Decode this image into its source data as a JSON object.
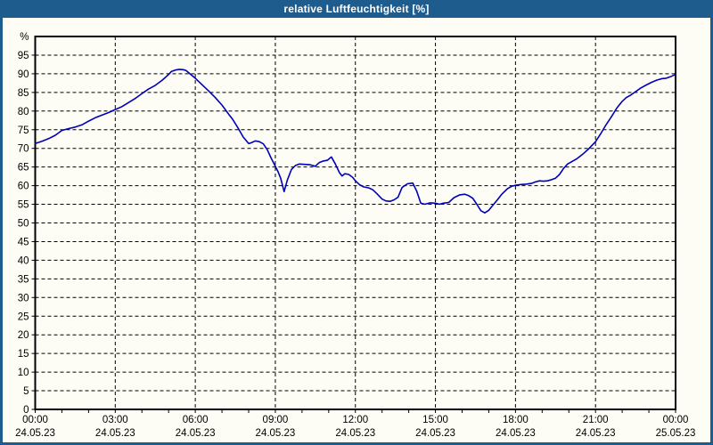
{
  "window": {
    "title": "relative Luftfeuchtigkeit [%]"
  },
  "colors": {
    "frame": "#1e5c8e",
    "titlebar_text": "#ffffff",
    "canvas_background": "#fdfdf6",
    "axis": "#000000",
    "grid": "#000000",
    "tick_text": "#000000",
    "series_line": "#0000b6"
  },
  "chart_data": {
    "type": "line",
    "title": "relative Luftfeuchtigkeit [%]",
    "ylabel": "%",
    "xlabel": "",
    "x_unit": "hours since 24.05.23 00:00",
    "xlim": [
      0,
      24
    ],
    "ylim": [
      0,
      100
    ],
    "grid": "dashed",
    "legend": "none",
    "y_ticks": [
      0,
      5,
      10,
      15,
      20,
      25,
      30,
      35,
      40,
      45,
      50,
      55,
      60,
      65,
      70,
      75,
      80,
      85,
      90,
      95
    ],
    "x_ticks": [
      {
        "hour": 0,
        "time": "00:00",
        "date": "24.05.23"
      },
      {
        "hour": 3,
        "time": "03:00",
        "date": "24.05.23"
      },
      {
        "hour": 6,
        "time": "06:00",
        "date": "24.05.23"
      },
      {
        "hour": 9,
        "time": "09:00",
        "date": "24.05.23"
      },
      {
        "hour": 12,
        "time": "12:00",
        "date": "24.05.23"
      },
      {
        "hour": 15,
        "time": "15:00",
        "date": "24.05.23"
      },
      {
        "hour": 18,
        "time": "18:00",
        "date": "24.05.23"
      },
      {
        "hour": 21,
        "time": "21:00",
        "date": "24.05.23"
      },
      {
        "hour": 24,
        "time": "00:00",
        "date": "25.05.23"
      }
    ],
    "minor_x_tick_hours": 1,
    "series": [
      {
        "name": "relative Luftfeuchtigkeit [%]",
        "color": "#0000b6",
        "points": [
          [
            0,
            71.3
          ],
          [
            0.25,
            71.9
          ],
          [
            0.5,
            72.6
          ],
          [
            0.75,
            73.5
          ],
          [
            1,
            74.8
          ],
          [
            1.25,
            75.3
          ],
          [
            1.5,
            75.7
          ],
          [
            1.75,
            76.3
          ],
          [
            2,
            77.3
          ],
          [
            2.25,
            78.2
          ],
          [
            2.5,
            78.9
          ],
          [
            2.75,
            79.6
          ],
          [
            3,
            80.4
          ],
          [
            3.25,
            81.2
          ],
          [
            3.5,
            82.3
          ],
          [
            3.75,
            83.4
          ],
          [
            4,
            84.7
          ],
          [
            4.25,
            85.9
          ],
          [
            4.5,
            86.9
          ],
          [
            4.75,
            88.2
          ],
          [
            5,
            89.8
          ],
          [
            5.1,
            90.6
          ],
          [
            5.25,
            91.0
          ],
          [
            5.4,
            91.2
          ],
          [
            5.55,
            91.1
          ],
          [
            5.65,
            90.9
          ],
          [
            5.75,
            90.3
          ],
          [
            6,
            88.8
          ],
          [
            6.25,
            87.1
          ],
          [
            6.5,
            85.4
          ],
          [
            6.75,
            83.6
          ],
          [
            7,
            81.6
          ],
          [
            7.25,
            79.2
          ],
          [
            7.4,
            77.8
          ],
          [
            7.6,
            75.5
          ],
          [
            7.8,
            73.0
          ],
          [
            8,
            71.3
          ],
          [
            8.1,
            71.5
          ],
          [
            8.25,
            72.0
          ],
          [
            8.4,
            71.8
          ],
          [
            8.55,
            71.2
          ],
          [
            8.7,
            69.6
          ],
          [
            8.85,
            67.3
          ],
          [
            9,
            65.2
          ],
          [
            9.1,
            63.8
          ],
          [
            9.2,
            62.0
          ],
          [
            9.33,
            58.4
          ],
          [
            9.45,
            61.5
          ],
          [
            9.6,
            64.3
          ],
          [
            9.75,
            65.4
          ],
          [
            9.9,
            65.8
          ],
          [
            10.1,
            65.7
          ],
          [
            10.3,
            65.6
          ],
          [
            10.5,
            65.2
          ],
          [
            10.65,
            66.2
          ],
          [
            10.8,
            66.6
          ],
          [
            10.95,
            66.8
          ],
          [
            11.1,
            67.7
          ],
          [
            11.25,
            65.8
          ],
          [
            11.4,
            63.5
          ],
          [
            11.5,
            62.6
          ],
          [
            11.6,
            63.2
          ],
          [
            11.75,
            63.0
          ],
          [
            11.9,
            62.2
          ],
          [
            12,
            61.3
          ],
          [
            12.15,
            60.3
          ],
          [
            12.3,
            59.7
          ],
          [
            12.5,
            59.4
          ],
          [
            12.65,
            58.9
          ],
          [
            12.8,
            57.9
          ],
          [
            13,
            56.4
          ],
          [
            13.15,
            55.9
          ],
          [
            13.3,
            55.8
          ],
          [
            13.45,
            56.2
          ],
          [
            13.6,
            56.9
          ],
          [
            13.75,
            59.5
          ],
          [
            13.95,
            60.5
          ],
          [
            14.15,
            60.7
          ],
          [
            14.3,
            58.5
          ],
          [
            14.45,
            55.3
          ],
          [
            14.6,
            55.0
          ],
          [
            14.8,
            55.4
          ],
          [
            15,
            55.3
          ],
          [
            15.15,
            55.0
          ],
          [
            15.3,
            55.3
          ],
          [
            15.5,
            55.5
          ],
          [
            15.7,
            56.8
          ],
          [
            15.9,
            57.5
          ],
          [
            16.1,
            57.7
          ],
          [
            16.25,
            57.3
          ],
          [
            16.4,
            56.6
          ],
          [
            16.55,
            55.0
          ],
          [
            16.7,
            53.3
          ],
          [
            16.85,
            52.7
          ],
          [
            17,
            53.4
          ],
          [
            17.15,
            54.7
          ],
          [
            17.3,
            56.0
          ],
          [
            17.5,
            57.8
          ],
          [
            17.7,
            59.2
          ],
          [
            17.85,
            59.8
          ],
          [
            18,
            60.1
          ],
          [
            18.2,
            60.3
          ],
          [
            18.4,
            60.4
          ],
          [
            18.6,
            60.6
          ],
          [
            18.75,
            61.0
          ],
          [
            18.9,
            61.3
          ],
          [
            19.05,
            61.2
          ],
          [
            19.2,
            61.3
          ],
          [
            19.35,
            61.6
          ],
          [
            19.5,
            62.0
          ],
          [
            19.65,
            63.0
          ],
          [
            19.8,
            64.6
          ],
          [
            19.95,
            65.8
          ],
          [
            20.1,
            66.4
          ],
          [
            20.3,
            67.2
          ],
          [
            20.5,
            68.3
          ],
          [
            20.75,
            69.9
          ],
          [
            21,
            71.8
          ],
          [
            21.2,
            74.0
          ],
          [
            21.4,
            76.4
          ],
          [
            21.6,
            78.5
          ],
          [
            21.8,
            80.8
          ],
          [
            22,
            82.6
          ],
          [
            22.15,
            83.6
          ],
          [
            22.3,
            84.2
          ],
          [
            22.5,
            85.2
          ],
          [
            22.7,
            86.2
          ],
          [
            22.9,
            87.0
          ],
          [
            23.1,
            87.7
          ],
          [
            23.3,
            88.3
          ],
          [
            23.5,
            88.7
          ],
          [
            23.65,
            88.8
          ],
          [
            23.8,
            89.2
          ],
          [
            24,
            89.8
          ]
        ]
      }
    ]
  }
}
